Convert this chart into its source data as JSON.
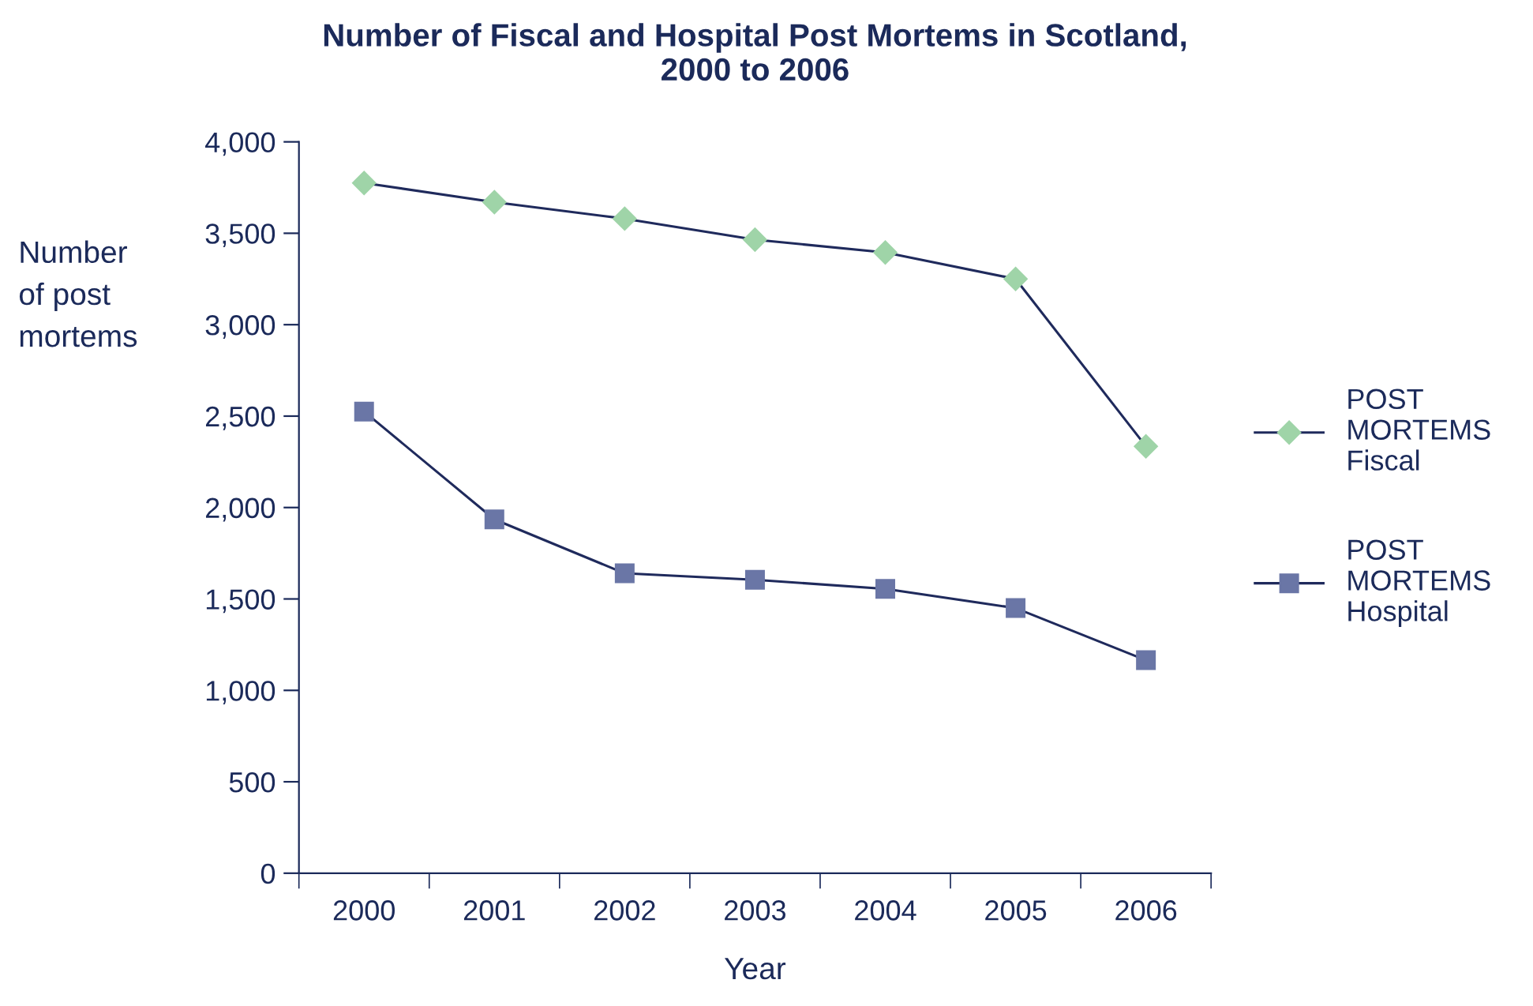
{
  "chart_data": {
    "type": "line",
    "title": "Number of Fiscal and Hospital Post Mortems in Scotland,\n2000 to 2006",
    "xlabel": "Year",
    "ylabel": "Number\nof post\nmortems",
    "categories": [
      "2000",
      "2001",
      "2002",
      "2003",
      "2004",
      "2005",
      "2006"
    ],
    "series": [
      {
        "name": "POST\nMORTEMS\nFiscal",
        "color": "#9fd4a8",
        "marker": "diamond",
        "values": [
          3775,
          3670,
          3580,
          3465,
          3395,
          3250,
          2335
        ]
      },
      {
        "name": "POST\nMORTEMS\nHospital",
        "color": "#6a76a6",
        "marker": "square",
        "values": [
          2525,
          1935,
          1640,
          1605,
          1555,
          1450,
          1165
        ]
      }
    ],
    "ylim": [
      0,
      4000
    ],
    "yticks": [
      0,
      {
        "value": 500,
        "label": "500"
      },
      {
        "value": 1000,
        "label": "1,000"
      },
      {
        "value": 1500,
        "label": "1,500"
      },
      {
        "value": 2000,
        "label": "2,000"
      },
      {
        "value": 2500,
        "label": "2,500"
      },
      {
        "value": 3000,
        "label": "3,000"
      },
      {
        "value": 3500,
        "label": "3,500"
      },
      {
        "value": 4000,
        "label": "4,000"
      }
    ],
    "grid": false,
    "legend": "right",
    "line_style": "solid"
  }
}
